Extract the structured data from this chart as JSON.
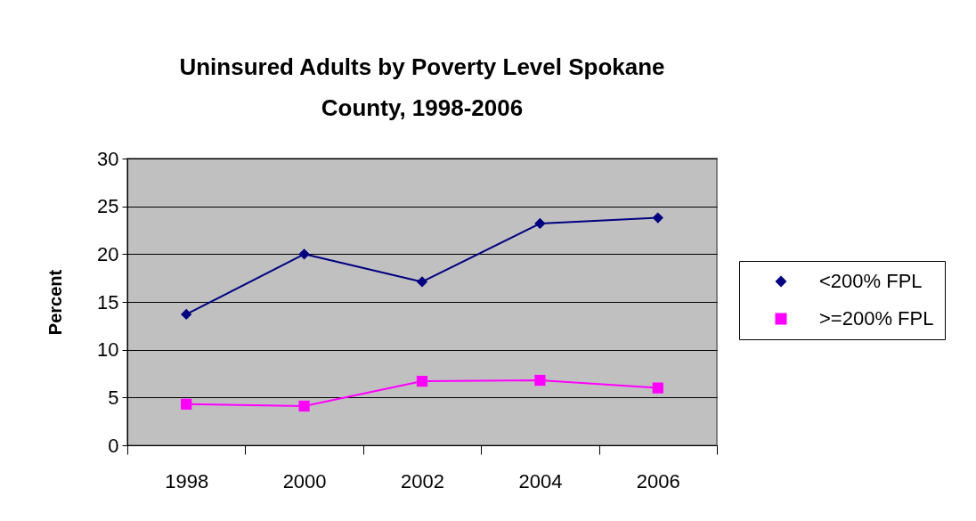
{
  "chart_data": {
    "type": "line",
    "title": "Uninsured Adults by Poverty Level Spokane County, 1998-2006",
    "ylabel": "Percent",
    "categories": [
      "1998",
      "2000",
      "2002",
      "2004",
      "2006"
    ],
    "series": [
      {
        "name": "<200% FPL",
        "color": "#000080",
        "marker": "diamond",
        "values": [
          13.7,
          20.0,
          17.1,
          23.2,
          23.8
        ]
      },
      {
        "name": ">=200% FPL",
        "color": "#ff00ff",
        "marker": "square",
        "values": [
          4.3,
          4.1,
          6.7,
          6.8,
          6.0
        ]
      }
    ],
    "ylim": [
      0,
      30
    ],
    "yticks": [
      0,
      5,
      10,
      15,
      20,
      25,
      30
    ],
    "grid": "y",
    "legend": "right",
    "line_style": "solid"
  }
}
